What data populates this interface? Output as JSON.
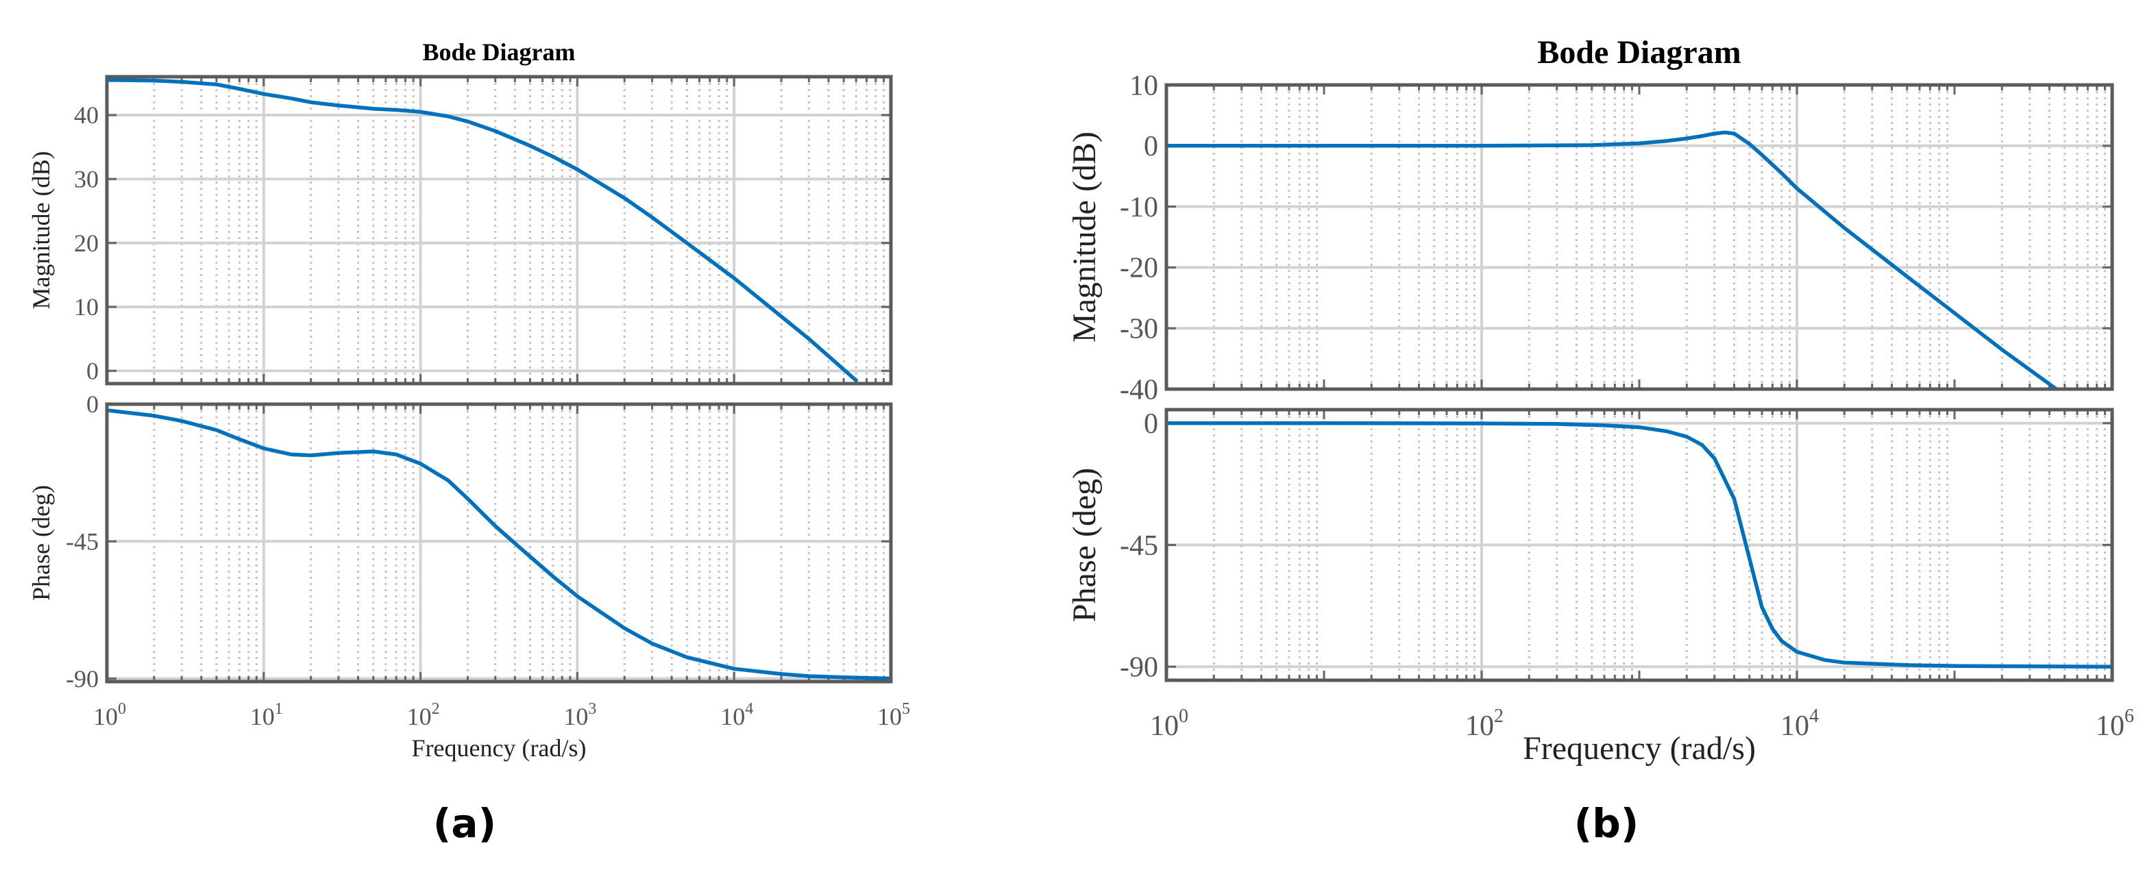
{
  "chart_data": [
    {
      "type": "line",
      "panel_label": "(a)",
      "title": "Bode Diagram",
      "xlabel": "Frequency  (rad/s)",
      "x_scale": "log",
      "xlim": [
        1,
        100000
      ],
      "x_ticks": [
        {
          "base": "10",
          "exp": "0"
        },
        {
          "base": "10",
          "exp": "1"
        },
        {
          "base": "10",
          "exp": "2"
        },
        {
          "base": "10",
          "exp": "3"
        },
        {
          "base": "10",
          "exp": "4"
        },
        {
          "base": "10",
          "exp": "5"
        }
      ],
      "grid": true,
      "line_color": "#0072BD",
      "magnitude": {
        "ylabel": "Magnitude (dB)",
        "ylim": [
          -2,
          46
        ],
        "y_ticks": [
          "0",
          "10",
          "20",
          "30",
          "40"
        ],
        "series": [
          {
            "x": [
              1,
              2,
              3,
              5,
              7,
              10,
              15,
              20,
              30,
              50,
              70,
              100,
              150,
              200,
              300,
              500,
              700,
              1000,
              2000,
              3000,
              5000,
              10000,
              20000,
              30000,
              60000
            ],
            "y": [
              45.5,
              45.4,
              45.2,
              44.8,
              44.1,
              43.3,
              42.6,
              42.0,
              41.5,
              41.0,
              40.8,
              40.5,
              39.8,
              39.0,
              37.5,
              35.2,
              33.5,
              31.5,
              27.0,
              24.0,
              20.0,
              14.5,
              8.5,
              5.0,
              -1.5
            ]
          }
        ]
      },
      "phase": {
        "ylabel": "Phase (deg)",
        "ylim": [
          -91,
          0
        ],
        "y_ticks": [
          "0",
          "-45",
          "-90"
        ],
        "series": [
          {
            "x": [
              1,
              2,
              3,
              5,
              7,
              10,
              15,
              20,
              30,
              50,
              70,
              100,
              150,
              200,
              300,
              500,
              700,
              1000,
              2000,
              3000,
              5000,
              10000,
              20000,
              30000,
              50000,
              100000
            ],
            "y": [
              -2.0,
              -3.8,
              -5.5,
              -8.5,
              -11.5,
              -14.5,
              -16.5,
              -16.8,
              -16.0,
              -15.5,
              -16.5,
              -19.5,
              -25.0,
              -31.0,
              -40.0,
              -50.0,
              -56.5,
              -63.0,
              -73.5,
              -78.5,
              -83.0,
              -86.8,
              -88.5,
              -89.2,
              -89.6,
              -90.0
            ]
          }
        ]
      }
    },
    {
      "type": "line",
      "panel_label": "(b)",
      "title": "Bode Diagram",
      "xlabel": "Frequency  (rad/s)",
      "x_scale": "log",
      "xlim": [
        1,
        1000000
      ],
      "x_ticks": [
        {
          "base": "10",
          "exp": "0"
        },
        {
          "base": "10",
          "exp": "2"
        },
        {
          "base": "10",
          "exp": "4"
        },
        {
          "base": "10",
          "exp": "6"
        }
      ],
      "grid": true,
      "line_color": "#0072BD",
      "magnitude": {
        "ylabel": "Magnitude (dB)",
        "ylim": [
          -40,
          10
        ],
        "y_ticks": [
          "10",
          "0",
          "-10",
          "-20",
          "-30",
          "-40"
        ],
        "series": [
          {
            "x": [
              1,
              10,
              100,
              500,
              1000,
              1500,
              2000,
              2500,
              3000,
              3500,
              4000,
              5000,
              6000,
              8000,
              10000,
              20000,
              50000,
              100000,
              200000,
              500000
            ],
            "y": [
              0,
              0,
              0,
              0.1,
              0.4,
              0.8,
              1.2,
              1.6,
              2.0,
              2.2,
              2.0,
              0.3,
              -1.5,
              -4.5,
              -7.0,
              -13.5,
              -21.5,
              -27.5,
              -33.5,
              -41.0
            ]
          }
        ]
      },
      "phase": {
        "ylabel": "Phase (deg)",
        "ylim": [
          -95,
          5
        ],
        "y_ticks": [
          "0",
          "-45",
          "-90"
        ],
        "series": [
          {
            "x": [
              1,
              10,
              100,
              300,
              600,
              1000,
              1500,
              2000,
              2500,
              3000,
              4000,
              5000,
              6000,
              7000,
              8000,
              10000,
              15000,
              20000,
              50000,
              100000,
              1000000
            ],
            "y": [
              0,
              0,
              -0.1,
              -0.3,
              -0.8,
              -1.5,
              -3.0,
              -5.0,
              -8.0,
              -13.0,
              -28.0,
              -50.0,
              -68.0,
              -76.0,
              -80.5,
              -84.5,
              -87.5,
              -88.5,
              -89.4,
              -89.7,
              -90.0
            ]
          }
        ]
      }
    }
  ]
}
